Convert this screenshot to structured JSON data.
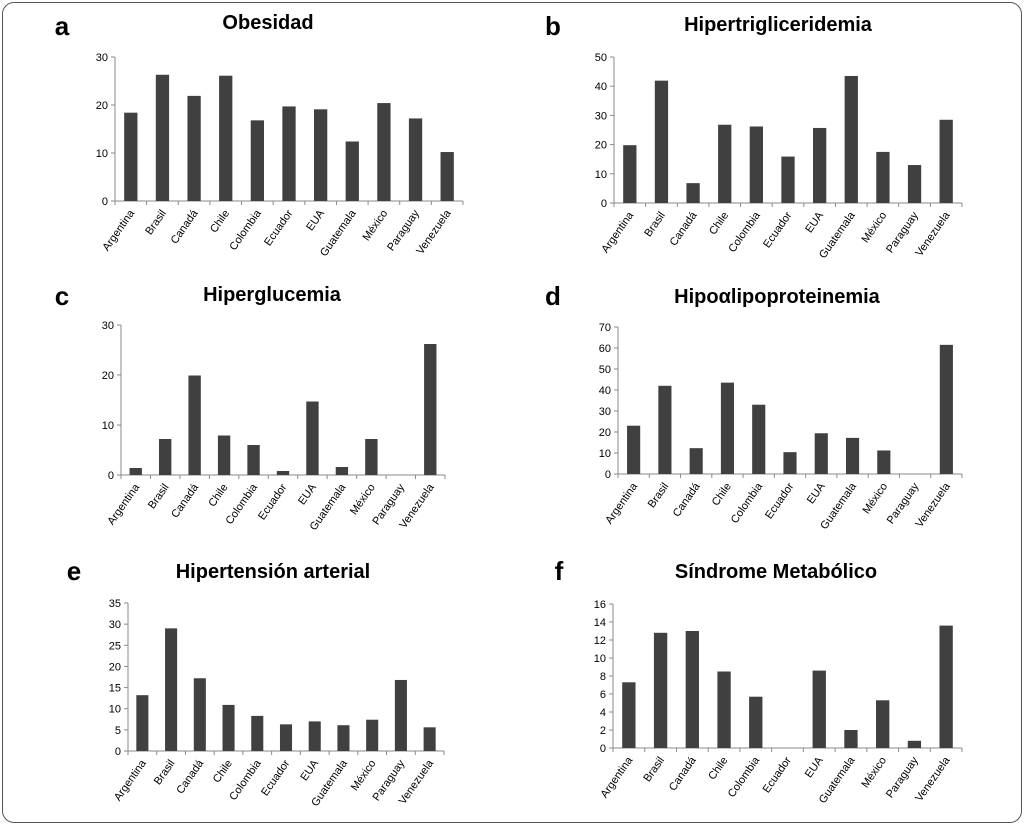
{
  "chart_data": [
    {
      "type": "bar",
      "panel": "a",
      "title": "Obesidad",
      "categories": [
        "Argentina",
        "Brasil",
        "Canadá",
        "Chile",
        "Colombia",
        "Ecuador",
        "EUA",
        "Guatemala",
        "México",
        "Paraguay",
        "Venezuela"
      ],
      "values": [
        18.4,
        26.3,
        21.9,
        26.1,
        16.8,
        19.7,
        19.1,
        12.4,
        20.4,
        17.2,
        10.2
      ],
      "ylim": [
        0,
        30
      ],
      "yticks": [
        0,
        10,
        20,
        30
      ],
      "xlabel": "",
      "ylabel": ""
    },
    {
      "type": "bar",
      "panel": "b",
      "title": "Hipertrigliceridemia",
      "categories": [
        "Argentina",
        "Brasil",
        "Canadá",
        "Chile",
        "Colombia",
        "Ecuador",
        "EUA",
        "Guatemala",
        "México",
        "Paraguay",
        "Venezuela"
      ],
      "values": [
        19.8,
        41.9,
        6.8,
        26.8,
        26.2,
        15.9,
        25.7,
        43.5,
        17.5,
        13.0,
        28.5
      ],
      "ylim": [
        0,
        50
      ],
      "yticks": [
        0,
        10,
        20,
        30,
        40,
        50
      ],
      "xlabel": "",
      "ylabel": ""
    },
    {
      "type": "bar",
      "panel": "c",
      "title": "Hiperglucemia",
      "categories": [
        "Argentina",
        "Brasil",
        "Canadá",
        "Chile",
        "Colombia",
        "Ecuador",
        "EUA",
        "Guatemala",
        "México",
        "Paraguay",
        "Venezuela"
      ],
      "values": [
        1.4,
        7.2,
        19.9,
        7.9,
        6.0,
        0.8,
        14.7,
        1.6,
        7.2,
        0,
        26.2
      ],
      "ylim": [
        0,
        30
      ],
      "yticks": [
        0,
        10,
        20,
        30
      ],
      "xlabel": "",
      "ylabel": ""
    },
    {
      "type": "bar",
      "panel": "d",
      "title": "Hipoαlipoproteinemia",
      "categories": [
        "Argentina",
        "Brasil",
        "Canadá",
        "Chile",
        "Colombia",
        "Ecuador",
        "EUA",
        "Guatemala",
        "México",
        "Paraguay",
        "Venezuela"
      ],
      "values": [
        23.0,
        42.0,
        12.3,
        43.5,
        33.0,
        10.4,
        19.4,
        17.2,
        11.2,
        0,
        61.5
      ],
      "ylim": [
        0,
        70
      ],
      "yticks": [
        0,
        10,
        20,
        30,
        40,
        50,
        60,
        70
      ],
      "xlabel": "",
      "ylabel": ""
    },
    {
      "type": "bar",
      "panel": "e",
      "title": "Hipertensión arterial",
      "categories": [
        "Argentina",
        "Brasil",
        "Canadá",
        "Chile",
        "Colombia",
        "Ecuador",
        "EUA",
        "Guatemala",
        "México",
        "Paraguay",
        "Venezuela"
      ],
      "values": [
        13.2,
        29.0,
        17.2,
        10.9,
        8.3,
        6.3,
        7.0,
        6.1,
        7.4,
        16.8,
        5.6
      ],
      "ylim": [
        0,
        35
      ],
      "yticks": [
        0,
        5,
        10,
        15,
        20,
        25,
        30,
        35
      ],
      "xlabel": "",
      "ylabel": ""
    },
    {
      "type": "bar",
      "panel": "f",
      "title": "Síndrome Metabólico",
      "categories": [
        "Argentina",
        "Brasil",
        "Canadá",
        "Chile",
        "Colombia",
        "Ecuador",
        "EUA",
        "Guatemala",
        "México",
        "Paraguay",
        "Venezuela"
      ],
      "values": [
        7.3,
        12.8,
        13.0,
        8.5,
        5.7,
        0,
        8.6,
        2.0,
        5.3,
        0.8,
        13.6
      ],
      "ylim": [
        0,
        16
      ],
      "yticks": [
        0,
        2,
        4,
        6,
        8,
        10,
        12,
        14,
        16
      ],
      "xlabel": "",
      "ylabel": ""
    }
  ],
  "colors": {
    "bar": "#404040",
    "axis": "#8a8a8a"
  }
}
